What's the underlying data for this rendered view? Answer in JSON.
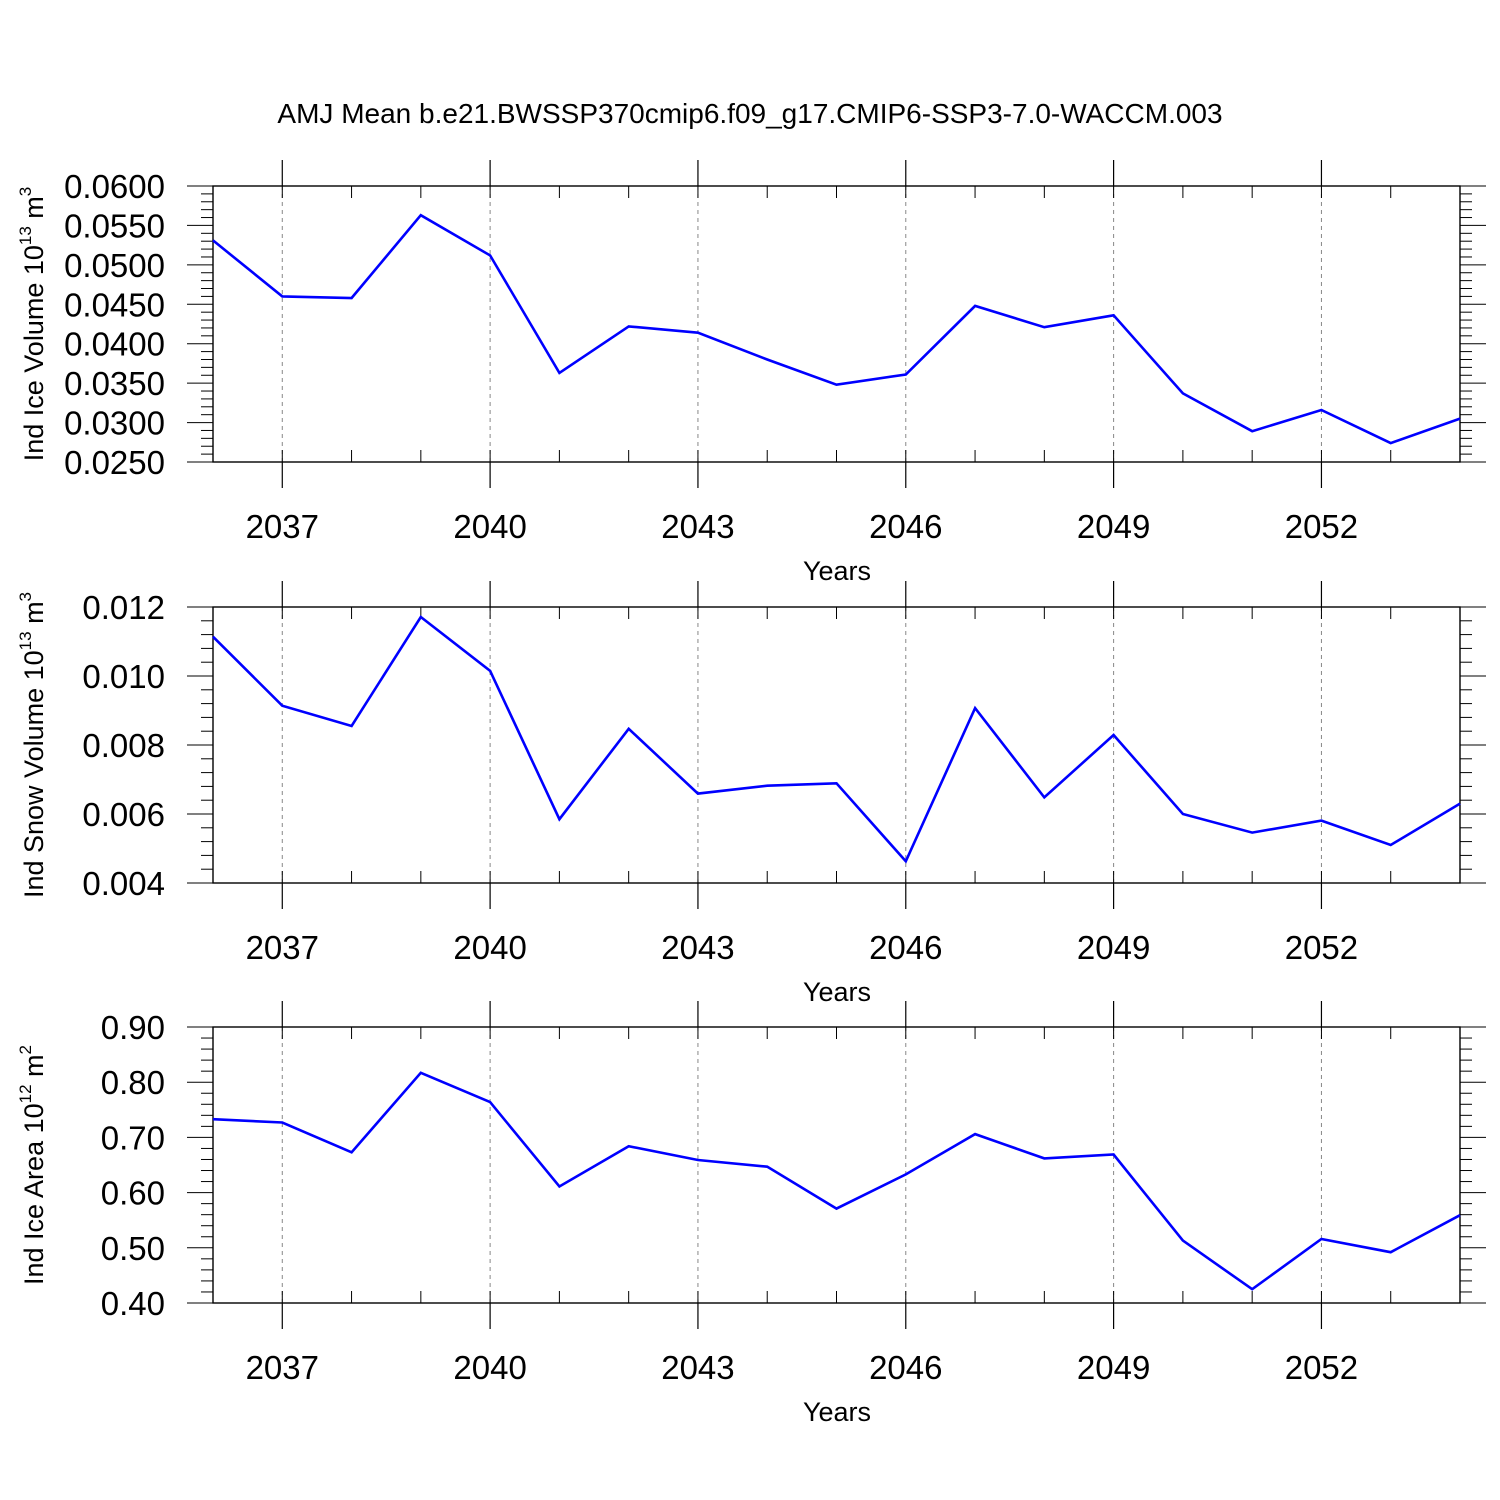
{
  "title": "AMJ Mean b.e21.BWSSP370cmip6.f09_g17.CMIP6-SSP3-7.0-WACCM.003",
  "line_color": "#0000ff",
  "chart_data": [
    {
      "type": "line",
      "ylabel": "Ind Ice Volume 10",
      "ylabel_exp": "13",
      "ylabel_unit": " m",
      "ylabel_unit_exp": "3",
      "xlabel": "Years",
      "xlim": [
        2036,
        2054
      ],
      "ylim": [
        0.025,
        0.06
      ],
      "yticks": [
        0.025,
        0.03,
        0.035,
        0.04,
        0.045,
        0.05,
        0.055,
        0.06
      ],
      "ytick_labels": [
        "0.0250",
        "0.0300",
        "0.0350",
        "0.0400",
        "0.0450",
        "0.0500",
        "0.0550",
        "0.0600"
      ],
      "xticks": [
        2037,
        2040,
        2043,
        2046,
        2049,
        2052
      ],
      "xtick_labels": [
        "2037",
        "2040",
        "2043",
        "2046",
        "2049",
        "2052"
      ],
      "x": [
        2036,
        2037,
        2038,
        2039,
        2040,
        2041,
        2042,
        2043,
        2044,
        2045,
        2046,
        2047,
        2048,
        2049,
        2050,
        2051,
        2052,
        2053,
        2054
      ],
      "series": [
        {
          "values": [
            0.0531,
            0.046,
            0.0458,
            0.0563,
            0.0512,
            0.0363,
            0.0422,
            0.0414,
            0.038,
            0.0348,
            0.0361,
            0.0448,
            0.0421,
            0.0436,
            0.0337,
            0.0289,
            0.0316,
            0.0274,
            0.0305
          ]
        }
      ]
    },
    {
      "type": "line",
      "ylabel": "Ind Snow Volume 10",
      "ylabel_exp": "13",
      "ylabel_unit": " m",
      "ylabel_unit_exp": "3",
      "xlabel": "Years",
      "xlim": [
        2036,
        2054
      ],
      "ylim": [
        0.004,
        0.012
      ],
      "yticks": [
        0.004,
        0.006,
        0.008,
        0.01,
        0.012
      ],
      "ytick_labels": [
        "0.004",
        "0.006",
        "0.008",
        "0.010",
        "0.012"
      ],
      "xticks": [
        2037,
        2040,
        2043,
        2046,
        2049,
        2052
      ],
      "xtick_labels": [
        "2037",
        "2040",
        "2043",
        "2046",
        "2049",
        "2052"
      ],
      "x": [
        2036,
        2037,
        2038,
        2039,
        2040,
        2041,
        2042,
        2043,
        2044,
        2045,
        2046,
        2047,
        2048,
        2049,
        2050,
        2051,
        2052,
        2053,
        2054
      ],
      "series": [
        {
          "values": [
            0.01114,
            0.00914,
            0.00855,
            0.01171,
            0.01015,
            0.00585,
            0.00847,
            0.00659,
            0.00682,
            0.00689,
            0.00463,
            0.00907,
            0.00648,
            0.00829,
            0.006,
            0.00546,
            0.00581,
            0.0051,
            0.0063
          ]
        }
      ]
    },
    {
      "type": "line",
      "ylabel": "Ind Ice Area 10",
      "ylabel_exp": "12",
      "ylabel_unit": " m",
      "ylabel_unit_exp": "2",
      "xlabel": "Years",
      "xlim": [
        2036,
        2054
      ],
      "ylim": [
        0.4,
        0.9
      ],
      "yticks": [
        0.4,
        0.5,
        0.6,
        0.7,
        0.8,
        0.9
      ],
      "ytick_labels": [
        "0.40",
        "0.50",
        "0.60",
        "0.70",
        "0.80",
        "0.90"
      ],
      "xticks": [
        2037,
        2040,
        2043,
        2046,
        2049,
        2052
      ],
      "xtick_labels": [
        "2037",
        "2040",
        "2043",
        "2046",
        "2049",
        "2052"
      ],
      "x": [
        2036,
        2037,
        2038,
        2039,
        2040,
        2041,
        2042,
        2043,
        2044,
        2045,
        2046,
        2047,
        2048,
        2049,
        2050,
        2051,
        2052,
        2053,
        2054
      ],
      "series": [
        {
          "values": [
            0.733,
            0.727,
            0.673,
            0.817,
            0.764,
            0.611,
            0.684,
            0.659,
            0.647,
            0.571,
            0.633,
            0.706,
            0.662,
            0.669,
            0.513,
            0.425,
            0.516,
            0.492,
            0.559
          ]
        }
      ]
    }
  ]
}
